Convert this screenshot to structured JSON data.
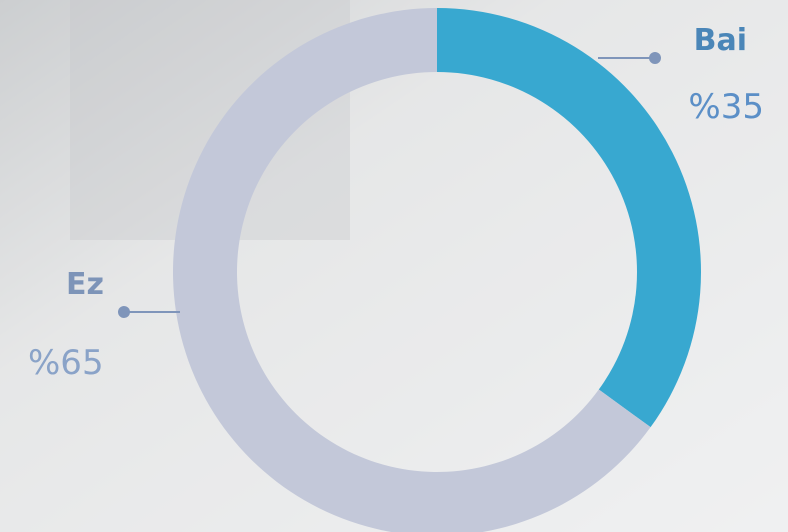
{
  "chart_data": {
    "type": "donut",
    "categories": [
      "Bai",
      "Ez"
    ],
    "values": [
      35,
      65
    ],
    "value_labels": [
      "%35",
      "%65"
    ],
    "colors": [
      "#38a8d0",
      "#c3c8d9"
    ]
  }
}
